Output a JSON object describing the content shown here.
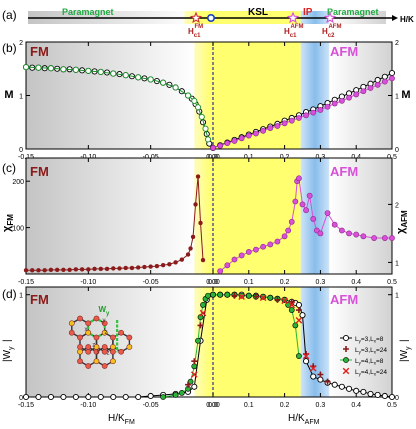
{
  "figure": {
    "panels": [
      "(a)",
      "(b)",
      "(c)",
      "(d)"
    ],
    "colors": {
      "fm": "#8b1a1a",
      "afm": "#d94fd9",
      "ksl": "#ffff66",
      "ip": "#8cc0ee",
      "paramagnet": "#22aa44",
      "grey": "#cfcfcf",
      "line": "#000000",
      "divider": "#2b2b99"
    }
  },
  "phase_bar": {
    "labels": {
      "paramagnet_left": "Paramagnet",
      "ksl": "KSL",
      "ip": "IP",
      "paramagnet_right": "Paramagnet",
      "axis": "H/K"
    },
    "critical_fields": [
      {
        "base": "H",
        "sub": "c1",
        "sup": "FM"
      },
      {
        "base": "H",
        "sub": "c1",
        "sup": "AFM"
      },
      {
        "base": "H",
        "sub": "c2",
        "sup": "AFM"
      }
    ]
  },
  "chart_data": [
    {
      "type": "scatter",
      "panel": "(b)",
      "left_label": "FM",
      "right_label": "AFM",
      "ylabel_left": "M",
      "ylabel_right": "M",
      "xlim_left": [
        -0.15,
        0
      ],
      "xlim_right": [
        0,
        0.5
      ],
      "ylim": [
        0,
        2
      ],
      "yticks": [
        0,
        1,
        2
      ],
      "xticks_left": [
        "-0.15",
        "-0.10",
        "-0.05",
        "0.00"
      ],
      "xticks_right": [
        "0.0",
        "0.1",
        "0.2",
        "0.3",
        "0.4",
        "0.5"
      ],
      "series": [
        {
          "side": "left",
          "marker": "open-circle-black",
          "x": [
            -0.15,
            -0.145,
            -0.14,
            -0.135,
            -0.13,
            -0.125,
            -0.12,
            -0.115,
            -0.11,
            -0.105,
            -0.1,
            -0.095,
            -0.09,
            -0.085,
            -0.08,
            -0.075,
            -0.07,
            -0.065,
            -0.06,
            -0.055,
            -0.05,
            -0.045,
            -0.04,
            -0.035,
            -0.03,
            -0.025,
            -0.02,
            -0.017,
            -0.014,
            -0.011,
            -0.008,
            -0.005,
            -0.003
          ],
          "y": [
            1.53,
            1.52,
            1.52,
            1.51,
            1.51,
            1.5,
            1.49,
            1.49,
            1.48,
            1.47,
            1.46,
            1.45,
            1.44,
            1.43,
            1.41,
            1.4,
            1.38,
            1.36,
            1.34,
            1.32,
            1.3,
            1.27,
            1.24,
            1.2,
            1.15,
            1.08,
            1.0,
            0.94,
            0.84,
            0.7,
            0.5,
            0.28,
            0.1
          ]
        },
        {
          "side": "left",
          "marker": "open-circle-green",
          "x": [
            -0.15,
            -0.14,
            -0.13,
            -0.12,
            -0.11,
            -0.1,
            -0.09,
            -0.08,
            -0.07,
            -0.06,
            -0.05,
            -0.04,
            -0.03,
            -0.02,
            -0.015,
            -0.012,
            -0.009,
            -0.006,
            -0.004
          ],
          "y": [
            1.53,
            1.52,
            1.51,
            1.49,
            1.48,
            1.46,
            1.44,
            1.41,
            1.38,
            1.34,
            1.3,
            1.24,
            1.15,
            1.0,
            0.9,
            0.78,
            0.6,
            0.38,
            0.18
          ]
        },
        {
          "side": "right",
          "marker": "open-circle-black",
          "x": [
            0.0,
            0.02,
            0.04,
            0.06,
            0.08,
            0.1,
            0.12,
            0.14,
            0.16,
            0.18,
            0.2,
            0.22,
            0.24,
            0.26,
            0.28,
            0.3,
            0.32,
            0.34,
            0.36,
            0.38,
            0.4,
            0.42,
            0.44,
            0.46,
            0.48,
            0.5
          ],
          "y": [
            0.02,
            0.07,
            0.12,
            0.17,
            0.22,
            0.27,
            0.32,
            0.37,
            0.42,
            0.47,
            0.53,
            0.58,
            0.63,
            0.69,
            0.74,
            0.8,
            0.86,
            0.92,
            0.98,
            1.04,
            1.1,
            1.16,
            1.22,
            1.29,
            1.35,
            1.42
          ]
        },
        {
          "side": "right",
          "marker": "filled-circle-magenta",
          "x": [
            0.0,
            0.02,
            0.04,
            0.06,
            0.08,
            0.1,
            0.12,
            0.14,
            0.16,
            0.18,
            0.2,
            0.22,
            0.24,
            0.26,
            0.28,
            0.3,
            0.32,
            0.34,
            0.36,
            0.38,
            0.4,
            0.42,
            0.44,
            0.46,
            0.48,
            0.5
          ],
          "y": [
            0.02,
            0.06,
            0.11,
            0.15,
            0.2,
            0.25,
            0.29,
            0.34,
            0.39,
            0.43,
            0.48,
            0.53,
            0.58,
            0.63,
            0.68,
            0.73,
            0.79,
            0.85,
            0.9,
            0.96,
            1.02,
            1.08,
            1.14,
            1.2,
            1.26,
            1.32
          ]
        }
      ]
    },
    {
      "type": "line",
      "panel": "(c)",
      "left_label": "FM",
      "right_label": "AFM",
      "ylabel_left": "χ",
      "ylabel_left_sub": "FM",
      "ylabel_right": "χ",
      "ylabel_right_sub": "AFM",
      "xlim_left": [
        -0.15,
        0
      ],
      "xlim_right": [
        0,
        0.5
      ],
      "ylim_left": [
        0,
        250
      ],
      "yticks_left": [
        100,
        200
      ],
      "ylim_right": [
        0.8,
        2.8
      ],
      "yticks_right": [
        1,
        2
      ],
      "xticks_left": [
        "-0.15",
        "-0.10",
        "-0.05",
        "0.00"
      ],
      "xticks_right": [
        "0.0",
        "0.1",
        "0.2",
        "0.3",
        "0.4",
        "0.5"
      ],
      "series": [
        {
          "side": "left",
          "marker": "filled-circle-darkred",
          "x": [
            -0.15,
            -0.145,
            -0.14,
            -0.135,
            -0.13,
            -0.125,
            -0.12,
            -0.115,
            -0.11,
            -0.105,
            -0.1,
            -0.095,
            -0.09,
            -0.085,
            -0.08,
            -0.075,
            -0.07,
            -0.065,
            -0.06,
            -0.055,
            -0.05,
            -0.045,
            -0.04,
            -0.035,
            -0.03,
            -0.025,
            -0.02,
            -0.018,
            -0.016,
            -0.014,
            -0.012,
            -0.01,
            -0.008
          ],
          "y": [
            8,
            8,
            8,
            8,
            9,
            9,
            9,
            9,
            10,
            10,
            10,
            11,
            11,
            11,
            12,
            12,
            13,
            13,
            14,
            15,
            16,
            17,
            19,
            21,
            25,
            31,
            42,
            55,
            80,
            150,
            210,
            110,
            30
          ]
        },
        {
          "side": "right",
          "marker": "filled-circle-magenta",
          "x": [
            0.02,
            0.04,
            0.06,
            0.08,
            0.1,
            0.12,
            0.14,
            0.16,
            0.18,
            0.2,
            0.21,
            0.22,
            0.23,
            0.235,
            0.24,
            0.25,
            0.26,
            0.27,
            0.28,
            0.29,
            0.3,
            0.32,
            0.34,
            0.36,
            0.38,
            0.4,
            0.42,
            0.45,
            0.48,
            0.5
          ],
          "y": [
            0.85,
            0.95,
            1.05,
            1.12,
            1.18,
            1.22,
            1.27,
            1.31,
            1.36,
            1.45,
            1.55,
            1.7,
            2.05,
            2.4,
            2.45,
            2.0,
            1.9,
            2.15,
            1.75,
            1.55,
            1.5,
            1.85,
            1.65,
            1.55,
            1.5,
            1.48,
            1.45,
            1.42,
            1.42,
            1.42
          ]
        }
      ]
    },
    {
      "type": "scatter",
      "panel": "(d)",
      "left_label": "FM",
      "right_label": "AFM",
      "ylabel_left": "|W",
      "ylabel_left_sub": "y",
      "ylabel_right": "|W",
      "ylabel_right_sub": "y",
      "xlabel_left": "H/K",
      "xlabel_left_sub": "FM",
      "xlabel_right": "H/K",
      "xlabel_right_sub": "AFM",
      "xlim_left": [
        -0.15,
        0
      ],
      "xlim_right": [
        0,
        0.5
      ],
      "ylim": [
        0,
        1
      ],
      "yticks": [
        0,
        1
      ],
      "xticks_left": [
        "-0.15",
        "-0.10",
        "-0.05",
        "0.00"
      ],
      "xticks_right": [
        "0.0",
        "0.1",
        "0.2",
        "0.3",
        "0.4",
        "0.5"
      ],
      "inset_label": {
        "base": "W",
        "sub": "y"
      },
      "inset_bond_labels": [
        "x",
        "y",
        "z"
      ],
      "legend": [
        {
          "name": "L",
          "sub1": "y",
          "eq1": "=3,L",
          "sub2": "x",
          "eq2": "=8",
          "marker": "open-circle-black"
        },
        {
          "name": "L",
          "sub1": "y",
          "eq1": "=3,L",
          "sub2": "x",
          "eq2": "=24",
          "marker": "plus-darkred"
        },
        {
          "name": "L",
          "sub1": "y",
          "eq1": "=4,L",
          "sub2": "x",
          "eq2": "=8",
          "marker": "filled-circle-green"
        },
        {
          "name": "L",
          "sub1": "y",
          "eq1": "=4,L",
          "sub2": "x",
          "eq2": "=24",
          "marker": "cross-red"
        }
      ],
      "series": [
        {
          "side": "left",
          "marker": "open-circle-black",
          "x": [
            -0.15,
            -0.14,
            -0.13,
            -0.12,
            -0.11,
            -0.1,
            -0.09,
            -0.08,
            -0.07,
            -0.06,
            -0.05,
            -0.04,
            -0.03,
            -0.02,
            -0.015,
            -0.01,
            -0.005
          ],
          "y": [
            0,
            0,
            0,
            0,
            0,
            0,
            0,
            0,
            0,
            0,
            0.01,
            0.02,
            0.03,
            0.05,
            0.1,
            0.55,
            0.95
          ]
        },
        {
          "side": "left",
          "marker": "filled-circle-green",
          "x": [
            -0.04,
            -0.03,
            -0.025,
            -0.02,
            -0.018,
            -0.015,
            -0.012,
            -0.01,
            -0.008,
            -0.006,
            -0.004
          ],
          "y": [
            0.0,
            0.02,
            0.04,
            0.08,
            0.15,
            0.3,
            0.55,
            0.78,
            0.9,
            0.96,
            0.99
          ]
        },
        {
          "side": "left",
          "marker": "plus-darkred",
          "x": [
            -0.02,
            -0.015,
            -0.01
          ],
          "y": [
            0.12,
            0.35,
            0.7
          ]
        },
        {
          "side": "left",
          "marker": "cross-red",
          "x": [
            -0.015,
            -0.008
          ],
          "y": [
            0.22,
            0.82
          ]
        },
        {
          "side": "right",
          "marker": "open-circle-black",
          "x": [
            0.0,
            0.02,
            0.04,
            0.06,
            0.08,
            0.1,
            0.12,
            0.14,
            0.16,
            0.18,
            0.2,
            0.22,
            0.23,
            0.24,
            0.25,
            0.26,
            0.28,
            0.3,
            0.32,
            0.34,
            0.36,
            0.38,
            0.4,
            0.42,
            0.44,
            0.46,
            0.48,
            0.5
          ],
          "y": [
            1.0,
            1.0,
            1.0,
            1.0,
            1.0,
            0.99,
            0.99,
            0.98,
            0.97,
            0.96,
            0.95,
            0.93,
            0.92,
            0.9,
            0.8,
            0.35,
            0.2,
            0.17,
            0.14,
            0.12,
            0.1,
            0.08,
            0.06,
            0.05,
            0.03,
            0.02,
            0.01,
            0.0
          ]
        },
        {
          "side": "right",
          "marker": "filled-circle-green",
          "x": [
            0.0,
            0.02,
            0.04,
            0.06,
            0.08,
            0.1,
            0.12,
            0.14,
            0.16,
            0.18,
            0.2,
            0.21,
            0.22,
            0.23,
            0.24
          ],
          "y": [
            1.0,
            1.0,
            1.0,
            1.0,
            0.99,
            0.99,
            0.98,
            0.98,
            0.97,
            0.96,
            0.95,
            0.9,
            0.85,
            0.7,
            0.4
          ]
        },
        {
          "side": "right",
          "marker": "plus-darkred",
          "x": [
            0.06,
            0.12,
            0.18,
            0.22,
            0.24,
            0.26,
            0.28,
            0.3,
            0.32
          ],
          "y": [
            0.99,
            0.98,
            0.95,
            0.93,
            0.85,
            0.42,
            0.3,
            0.22,
            0.15
          ]
        },
        {
          "side": "right",
          "marker": "cross-red",
          "x": [
            0.08,
            0.14,
            0.2,
            0.22,
            0.24,
            0.26,
            0.28
          ],
          "y": [
            0.98,
            0.97,
            0.94,
            0.9,
            0.75,
            0.4,
            0.28
          ]
        }
      ]
    }
  ]
}
